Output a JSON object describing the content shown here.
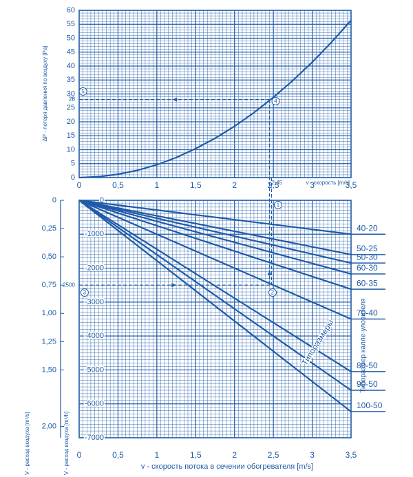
{
  "chart_data": [
    {
      "type": "line",
      "y_axis_label": "ΔP - потеря давления по воздуху [Pa]",
      "x_axis_label": "v - скорость [m/s]",
      "x": [
        0,
        0.25,
        0.5,
        0.75,
        1,
        1.25,
        1.5,
        1.75,
        2,
        2.25,
        2.5,
        2.75,
        3,
        3.25,
        3.5
      ],
      "series": [
        {
          "values": [
            0,
            0.3,
            1.2,
            2.6,
            4.6,
            7.2,
            10.4,
            14.1,
            18.4,
            23.3,
            28.8,
            34.8,
            41.4,
            48.6,
            56.4
          ]
        }
      ],
      "color": "#1f5ba8",
      "xlim": [
        0,
        3.5
      ],
      "xticks": [
        0,
        {
          "value": 0.5,
          "label": "0,5"
        },
        1,
        {
          "value": 1.5,
          "label": "1,5"
        },
        2,
        {
          "value": 2.5,
          "label": "2,5"
        },
        3,
        {
          "value": 3.5,
          "label": "3,5"
        }
      ],
      "ylim": [
        0,
        60
      ],
      "yticks": [
        0,
        5,
        10,
        15,
        20,
        25,
        30,
        35,
        40,
        45,
        50,
        55,
        60
      ],
      "grid": true,
      "reference": {
        "x": {
          "value": 2.45,
          "label": "2,45"
        },
        "y": {
          "value": 28,
          "label": "28"
        }
      },
      "callouts": [
        {
          "label": "5",
          "x": 0.05,
          "y": 30.9
        },
        {
          "label": "4",
          "x": 2.53,
          "y": 27.4
        }
      ]
    },
    {
      "type": "line",
      "x_axis_label": "v - скорость потока в сечении обогревателя [m/s]",
      "y_axis_label": "V - расход воздуха [m³/h]",
      "y2_axis_label": "V - расход воздуха [m³/s]",
      "series_group_label": "Типоразмеры",
      "series_title": "Типоразмер калле-уловителя",
      "x": [
        0,
        3.5
      ],
      "series": [
        {
          "name": "40-20",
          "values": [
            0,
            -1000
          ]
        },
        {
          "name": "50-25",
          "values": [
            0,
            -1600
          ]
        },
        {
          "name": "50-30",
          "values": [
            0,
            -1850
          ]
        },
        {
          "name": "60-30",
          "values": [
            0,
            -2170
          ]
        },
        {
          "name": "60-35",
          "values": [
            0,
            -2620
          ]
        },
        {
          "name": "70-40",
          "values": [
            0,
            -3500
          ]
        },
        {
          "name": "80-50",
          "values": [
            0,
            -5050
          ]
        },
        {
          "name": "90-50",
          "values": [
            0,
            -5600
          ]
        },
        {
          "name": "100-50",
          "values": [
            0,
            -6230
          ]
        }
      ],
      "color": "#1f5ba8",
      "xlim": [
        0,
        3.5
      ],
      "xticks": [
        0,
        {
          "value": 0.5,
          "label": "0,5"
        },
        1,
        {
          "value": 1.5,
          "label": "1,5"
        },
        2,
        {
          "value": 2.5,
          "label": "2,5"
        },
        3,
        {
          "value": 3.5,
          "label": "3,5"
        }
      ],
      "ylim": [
        -7000,
        0
      ],
      "yticks": [
        0,
        -1000,
        -2000,
        -3000,
        -4000,
        -5000,
        -6000,
        -7000
      ],
      "y2lim": [
        0,
        2.1
      ],
      "y2_reversed": true,
      "y2ticks": [
        0,
        {
          "value": 0.25,
          "label": "0,25"
        },
        {
          "value": 0.5,
          "label": "0,50"
        },
        {
          "value": 0.75,
          "label": "0,75"
        },
        {
          "value": 1,
          "label": "1,00"
        },
        {
          "value": 1.25,
          "label": "1,25"
        },
        {
          "value": 1.5,
          "label": "1,50"
        },
        {
          "value": 2,
          "label": "2,00"
        }
      ],
      "grid": true,
      "reference": {
        "y": {
          "value": -2500,
          "label": "2500"
        }
      },
      "callouts": [
        {
          "label": "1",
          "x": 2.56,
          "y": -140
        },
        {
          "label": "2",
          "x": 2.49,
          "y": -2720
        },
        {
          "label": "3",
          "x": 0.07,
          "y": -2720
        }
      ]
    }
  ]
}
